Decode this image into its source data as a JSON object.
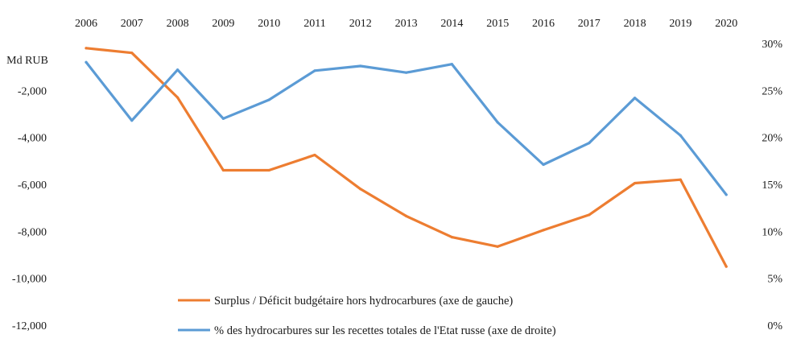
{
  "chart_data": {
    "type": "line",
    "x": [
      "2006",
      "2007",
      "2008",
      "2009",
      "2010",
      "2011",
      "2012",
      "2013",
      "2014",
      "2015",
      "2016",
      "2017",
      "2018",
      "2019",
      "2020"
    ],
    "left_axis": {
      "unit_label": "Md RUB",
      "ylim": [
        -12000,
        0
      ],
      "ticks": [
        -2000,
        -4000,
        -6000,
        -8000,
        -10000,
        -12000
      ],
      "tick_labels": [
        "-2,000",
        "-4,000",
        "-6,000",
        "-8,000",
        "-10,000",
        "-12,000"
      ]
    },
    "right_axis": {
      "ylim": [
        0,
        30
      ],
      "ticks": [
        30,
        25,
        20,
        15,
        10,
        5,
        0
      ],
      "tick_labels": [
        "30%",
        "25%",
        "20%",
        "15%",
        "10%",
        "5%",
        "0%"
      ]
    },
    "series": [
      {
        "name": "Surplus / Déficit budgétaire hors hydrocarbures (axe de gauche)",
        "axis": "left",
        "color": "#ED7D31",
        "values": [
          -200,
          -400,
          -2300,
          -5400,
          -5400,
          -4750,
          -6200,
          -7350,
          -8250,
          -8650,
          -7950,
          -7300,
          -5950,
          -5800,
          -9500
        ]
      },
      {
        "name": "% des hydrocarbures sur les recettes totales de l'Etat russe (axe de droite)",
        "axis": "right",
        "color": "#5B9BD5",
        "values": [
          28.0,
          21.8,
          27.2,
          22.0,
          24.0,
          27.1,
          27.6,
          26.9,
          27.8,
          21.6,
          17.1,
          19.4,
          24.2,
          20.2,
          13.9
        ]
      }
    ],
    "grid": false,
    "legend_position": "bottom-center"
  }
}
